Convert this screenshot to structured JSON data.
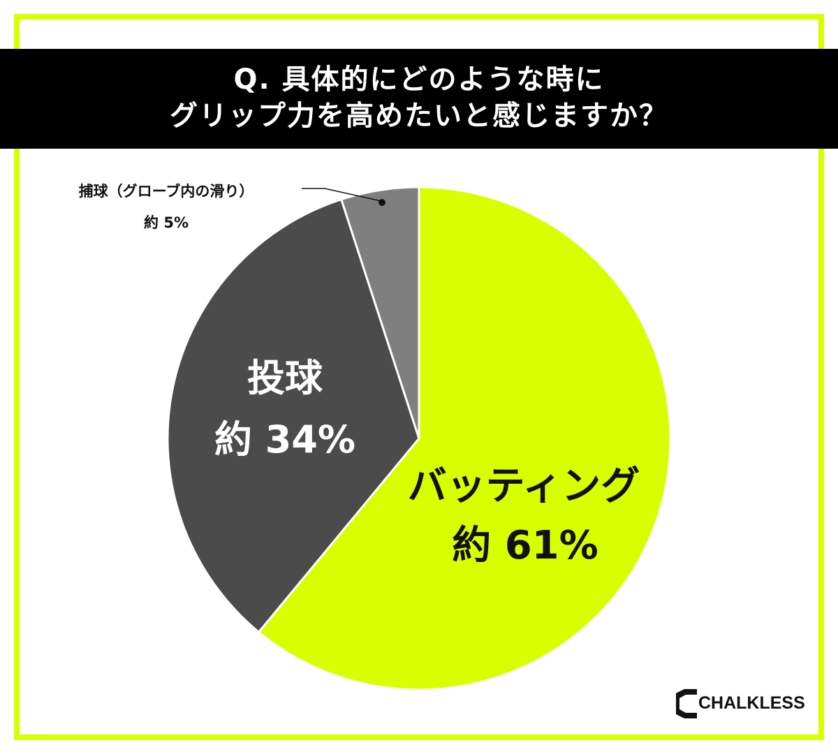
{
  "title": {
    "line1": "Q. 具体的にどのような時に",
    "line2": "グリップ力を高めたいと感じますか？"
  },
  "colors": {
    "frame": "#d8ff00",
    "title_band": "#000000",
    "title_text": "#ffffff",
    "batting": "#d8ff00",
    "pitching": "#4b4b4b",
    "catching": "#7f7f7f",
    "label_dark": "#111111",
    "label_light": "#ffffff"
  },
  "chart_data": {
    "type": "pie",
    "title": "Q. 具体的にどのような時に グリップ力を高めたいと感じますか？",
    "slices": [
      {
        "label": "バッティング",
        "value_text": "約 61%",
        "value": 61
      },
      {
        "label": "投球",
        "value_text": "約 34%",
        "value": 34
      },
      {
        "label": "捕球（グローブ内の滑り）",
        "value_text": "約 5%",
        "value": 5
      }
    ]
  },
  "logo": {
    "text": "CHALKLESS"
  }
}
